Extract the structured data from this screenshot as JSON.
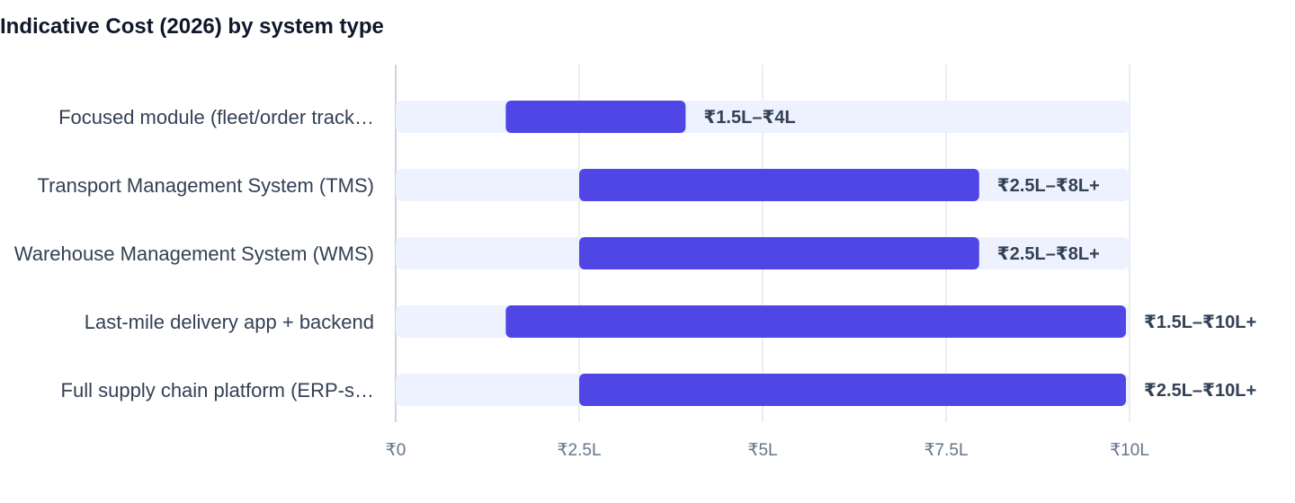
{
  "chart_data": {
    "type": "bar",
    "orientation": "horizontal",
    "range_bars": true,
    "title": "Indicative Cost (2026) by system type",
    "xlabel": "",
    "ylabel": "",
    "xlim": [
      0,
      10
    ],
    "unit": "₹ lakh",
    "grid": true,
    "categories": [
      "Focused module (fleet/order track…",
      "Transport Management System (TMS)",
      "Warehouse Management System (WMS)",
      "Last-mile delivery app + backend",
      "Full supply chain platform (ERP-s…"
    ],
    "series": [
      {
        "low": [
          1.5,
          2.5,
          2.5,
          1.5,
          2.5
        ],
        "high": [
          4,
          8,
          8,
          10,
          10
        ],
        "labels": [
          "₹1.5L–₹4L",
          "₹2.5L–₹8L+",
          "₹2.5L–₹8L+",
          "₹1.5L–₹10L+",
          "₹2.5L–₹10L+"
        ]
      }
    ],
    "ticks": [
      {
        "value": 0,
        "label": "₹0"
      },
      {
        "value": 2.5,
        "label": "₹2.5L"
      },
      {
        "value": 5,
        "label": "₹5L"
      },
      {
        "value": 7.5,
        "label": "₹7.5L"
      },
      {
        "value": 10,
        "label": "₹10L"
      }
    ],
    "colors": {
      "bar": "#4f46e5",
      "track": "#eef2ff",
      "grid": "#e2e8f0",
      "axis": "#cbd5e1"
    }
  }
}
